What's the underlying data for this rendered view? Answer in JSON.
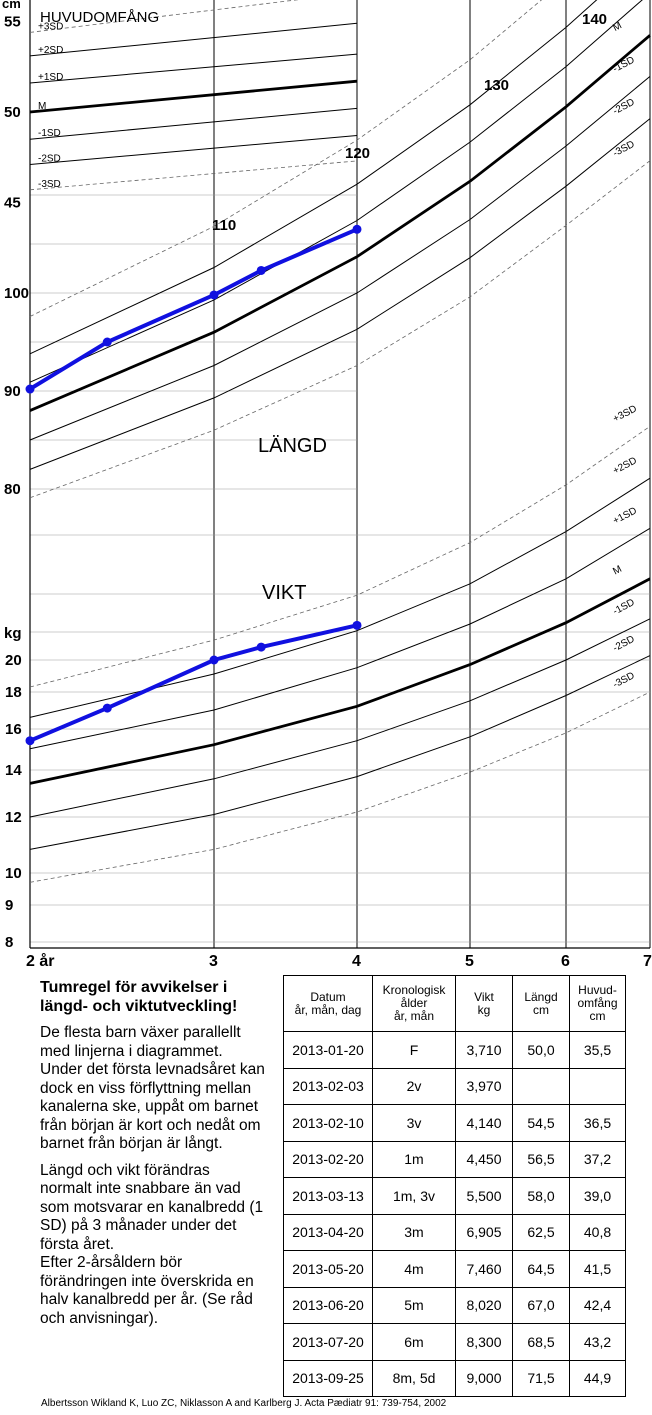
{
  "chart_data": {
    "type": "line",
    "unit_label": "cm",
    "weight_unit_label": "kg",
    "x_ticks": [
      {
        "value": 2,
        "label": "2  år"
      },
      {
        "value": 3,
        "label": "3"
      },
      {
        "value": 4,
        "label": "4"
      },
      {
        "value": 5,
        "label": "5"
      },
      {
        "value": 6,
        "label": "6"
      },
      {
        "value": 7,
        "label": "7"
      }
    ],
    "xlim": [
      2,
      7
    ],
    "head_circumference": {
      "title": "HUVUDOMFÅNG",
      "y_ticks": [
        45,
        50,
        55
      ],
      "x_range": [
        2,
        4
      ],
      "curves": [
        {
          "name": "+3SD",
          "values": [
            54.4,
            56.6
          ]
        },
        {
          "name": "+2SD",
          "values": [
            53.1,
            54.9
          ]
        },
        {
          "name": "+1SD",
          "values": [
            51.6,
            53.2
          ]
        },
        {
          "name": "M",
          "values": [
            50.0,
            51.7
          ]
        },
        {
          "name": "-1SD",
          "values": [
            48.5,
            50.2
          ]
        },
        {
          "name": "-2SD",
          "values": [
            47.1,
            48.7
          ]
        },
        {
          "name": "-3SD",
          "values": [
            45.7,
            47.3
          ]
        }
      ]
    },
    "length": {
      "title": "LÄNGD",
      "y_ticks": [
        80,
        90,
        100
      ],
      "curve_labels": [
        110,
        120,
        130,
        140
      ],
      "curves": [
        {
          "name": "+3SD",
          "x": [
            2,
            3,
            4,
            5,
            6,
            7
          ],
          "values": [
            97.6,
            106.8,
            115.6,
            123.8,
            132.0,
            140.2
          ]
        },
        {
          "name": "+2SD",
          "x": [
            2,
            3,
            4,
            5,
            6,
            7
          ],
          "values": [
            93.8,
            102.6,
            111.1,
            119.2,
            127.1,
            134.8
          ]
        },
        {
          "name": "+1SD",
          "x": [
            2,
            3,
            4,
            5,
            6,
            7
          ],
          "values": [
            90.9,
            99.3,
            107.4,
            115.4,
            123.1,
            130.6
          ]
        },
        {
          "name": "M",
          "x": [
            2,
            3,
            4,
            5,
            6,
            7
          ],
          "values": [
            88.0,
            96.0,
            103.7,
            111.4,
            119.0,
            126.3
          ]
        },
        {
          "name": "-1SD",
          "x": [
            2,
            3,
            4,
            5,
            6,
            7
          ],
          "values": [
            85.0,
            92.6,
            100.0,
            107.5,
            115.0,
            122.1
          ]
        },
        {
          "name": "-2SD",
          "x": [
            2,
            3,
            4,
            5,
            6,
            7
          ],
          "values": [
            82.0,
            89.3,
            96.3,
            103.6,
            110.9,
            117.8
          ]
        },
        {
          "name": "-3SD",
          "x": [
            2,
            3,
            4,
            5,
            6,
            7
          ],
          "values": [
            79.1,
            86.0,
            92.6,
            99.6,
            106.9,
            113.5
          ]
        }
      ],
      "child": {
        "x": [
          2.0,
          2.42,
          3.0,
          3.33,
          4.0
        ],
        "values": [
          90.2,
          95.0,
          99.8,
          102.3,
          106.5
        ]
      }
    },
    "weight": {
      "title": "VIKT",
      "y_ticks": [
        8,
        9,
        10,
        12,
        14,
        16,
        18,
        20
      ],
      "curves": [
        {
          "name": "+3SD",
          "x": [
            2,
            3,
            4,
            5,
            6,
            7
          ],
          "values": [
            18.3,
            21.4,
            24.9,
            29.3,
            34.8,
            41.4
          ]
        },
        {
          "name": "+2SD",
          "x": [
            2,
            3,
            4,
            5,
            6,
            7
          ],
          "values": [
            16.6,
            19.1,
            22.1,
            25.8,
            30.3,
            35.5
          ]
        },
        {
          "name": "+1SD",
          "x": [
            2,
            3,
            4,
            5,
            6,
            7
          ],
          "values": [
            15.0,
            17.0,
            19.5,
            22.6,
            26.2,
            30.6
          ]
        },
        {
          "name": "M",
          "x": [
            2,
            3,
            4,
            5,
            6,
            7
          ],
          "values": [
            13.4,
            15.2,
            17.2,
            19.7,
            22.7,
            26.2
          ]
        },
        {
          "name": "-1SD",
          "x": [
            2,
            3,
            4,
            5,
            6,
            7
          ],
          "values": [
            12.0,
            13.6,
            15.4,
            17.5,
            20.0,
            23.0
          ]
        },
        {
          "name": "-2SD",
          "x": [
            2,
            3,
            4,
            5,
            6,
            7
          ],
          "values": [
            10.8,
            12.1,
            13.7,
            15.6,
            17.8,
            20.3
          ]
        },
        {
          "name": "-3SD",
          "x": [
            2,
            3,
            4,
            5,
            6,
            7
          ],
          "values": [
            9.7,
            10.8,
            12.2,
            13.9,
            15.8,
            18.0
          ]
        }
      ],
      "child": {
        "x": [
          2.0,
          2.42,
          3.0,
          3.33,
          4.0
        ],
        "values": [
          15.4,
          17.1,
          20.0,
          20.9,
          22.5
        ]
      }
    }
  },
  "info": {
    "heading": "Tumregel för avvikelser i längd- och viktutveckling!",
    "p1": "De flesta barn växer parallellt med linjerna i diagrammet. Under det första levnadsåret kan dock en viss förflyttning mellan kanalerna ske, uppåt om barnet från början är kort och nedåt om barnet från början är långt.",
    "p2": "Längd och vikt förändras normalt inte snabbare än vad som motsvarar en kanalbredd (1 SD) på 3 månader under det första året.",
    "p3": "Efter 2-årsåldern bör förändringen inte överskrida en halv kanalbredd per år. (Se råd och anvisningar)."
  },
  "table": {
    "headers": [
      {
        "l1": "Datum",
        "l2": "år, mån, dag",
        "l3": ""
      },
      {
        "l1": "Kronologisk",
        "l2": "ålder",
        "l3": "år, mån"
      },
      {
        "l1": "Vikt",
        "l2": "kg",
        "l3": ""
      },
      {
        "l1": "Längd",
        "l2": "cm",
        "l3": ""
      },
      {
        "l1": "Huvud-",
        "l2": "omfång",
        "l3": "cm"
      }
    ],
    "rows": [
      [
        "2013-01-20",
        "F",
        "3,710",
        "50,0",
        "35,5"
      ],
      [
        "2013-02-03",
        "2v",
        "3,970",
        "",
        ""
      ],
      [
        "2013-02-10",
        "3v",
        "4,140",
        "54,5",
        "36,5"
      ],
      [
        "2013-02-20",
        "1m",
        "4,450",
        "56,5",
        "37,2"
      ],
      [
        "2013-03-13",
        "1m, 3v",
        "5,500",
        "58,0",
        "39,0"
      ],
      [
        "2013-04-20",
        "3m",
        "6,905",
        "62,5",
        "40,8"
      ],
      [
        "2013-05-20",
        "4m",
        "7,460",
        "64,5",
        "41,5"
      ],
      [
        "2013-06-20",
        "5m",
        "8,020",
        "67,0",
        "42,4"
      ],
      [
        "2013-07-20",
        "6m",
        "8,300",
        "68,5",
        "43,2"
      ],
      [
        "2013-09-25",
        "8m, 5d",
        "9,000",
        "71,5",
        "44,9"
      ]
    ]
  },
  "reference": "Albertsson Wikland K, Luo ZC, Niklasson A and Karlberg J.  Acta Pædiatr 91: 739-754, 2002"
}
